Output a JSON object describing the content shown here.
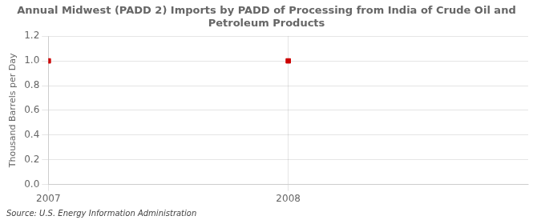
{
  "chart_data": {
    "type": "scatter",
    "title": "Annual Midwest (PADD 2) Imports by PADD of Processing from India of Crude Oil and Petroleum Products",
    "y_label": "Thousand Barrels per Day",
    "source": "Source: U.S. Energy Information Administration",
    "x": [
      2007,
      2008
    ],
    "values": [
      1.0,
      1.0
    ],
    "color": "#cc0000",
    "marker": "square",
    "xlim": [
      2007,
      2009
    ],
    "xticks": [
      2007,
      2008
    ],
    "ylim": [
      0.0,
      1.2
    ],
    "yticks": [
      {
        "value": 0.0,
        "label": "0.0"
      },
      0.2,
      0.4,
      0.6,
      0.8,
      {
        "value": 1.0,
        "label": "1.0"
      },
      1.2
    ],
    "grid": true
  }
}
